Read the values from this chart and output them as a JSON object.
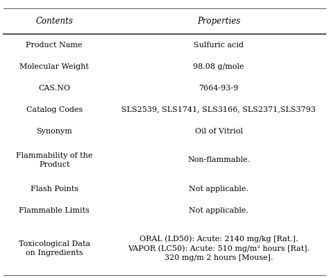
{
  "headers": [
    "Contents",
    "Properties"
  ],
  "rows": [
    [
      "Product Name",
      "Sulfuric acid"
    ],
    [
      "Molecular Weight",
      "98.08 g/mole"
    ],
    [
      "CAS.NO",
      "7664-93-9"
    ],
    [
      "Catalog Codes",
      "SLS2539, SLS1741, SLS3166, SLS2371,SLS3793"
    ],
    [
      "Synonym",
      "Oil of Vitriol"
    ],
    [
      "Flammability of the\nProduct",
      "Non-flammable."
    ],
    [
      "Flash Points",
      "Not applicable."
    ],
    [
      "Flammable Limits",
      "Not applicable."
    ],
    [
      "Toxicological Data\non Ingredients",
      "ORAL (LD50): Acute: 2140 mg/kg [Rat.].\nVAPOR (LC50): Acute: 510 mg/m² hours [Rat].\n320 mg/m 2 hours [Mouse]."
    ]
  ],
  "col_split": 0.33,
  "text_color": "#000000",
  "line_color": "#555555",
  "font_size": 8.0,
  "header_font_size": 8.5,
  "background_color": "#ffffff",
  "figsize": [
    4.74,
    4.0
  ],
  "dpi": 100
}
